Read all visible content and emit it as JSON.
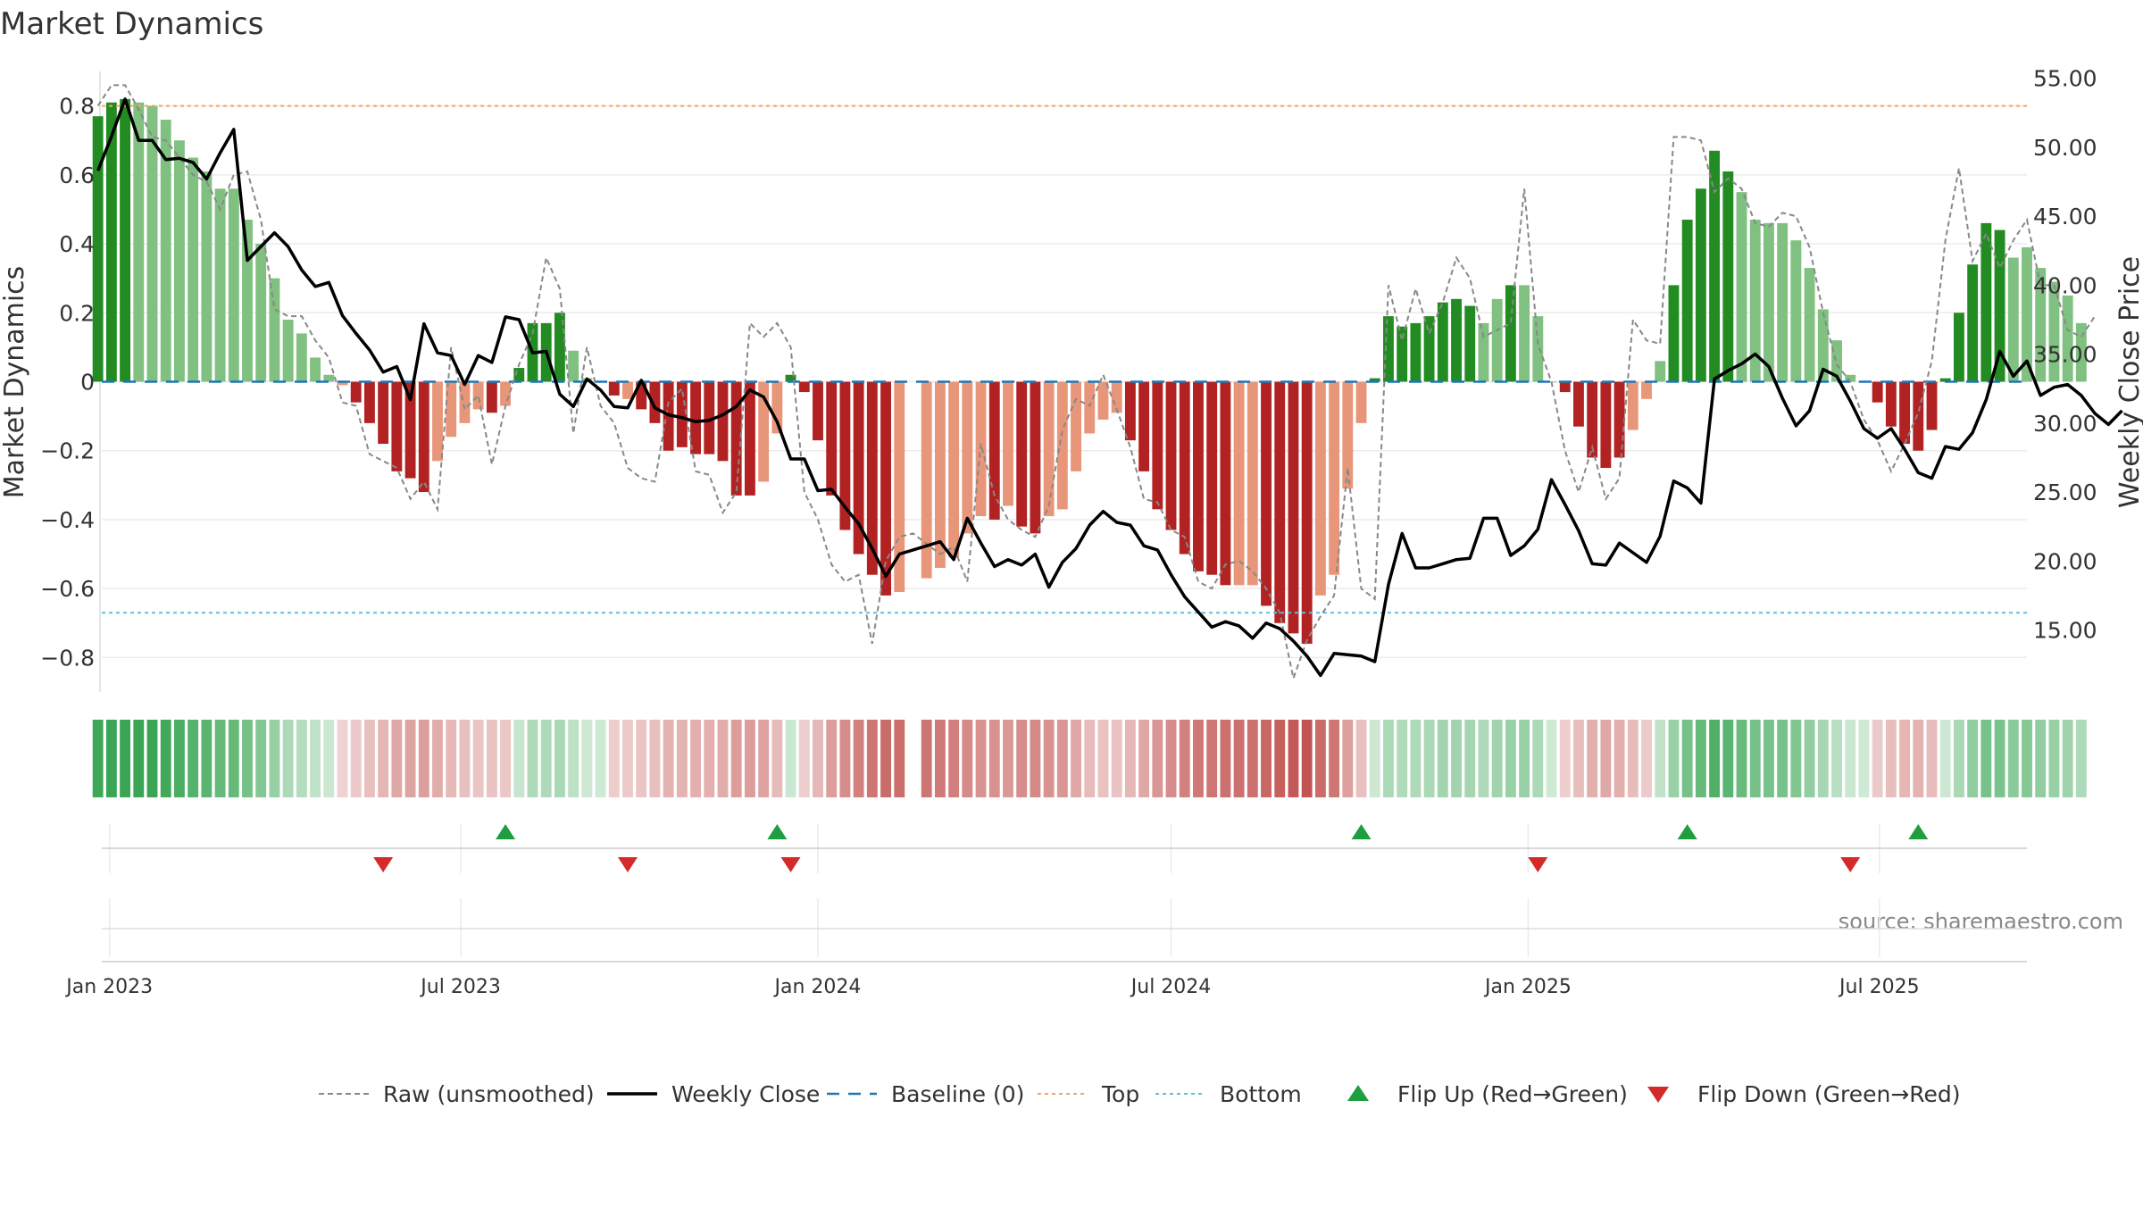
{
  "chart_data": {
    "type": "bar",
    "title": "Market Dynamics",
    "ylabel_left": "Market Dynamics",
    "ylabel_right": "Weekly Close Price",
    "source": "source: sharemaestro.com",
    "x_range": [
      "2022-12-28",
      "2025-09-15"
    ],
    "ylim_left": [
      -0.9,
      0.9
    ],
    "ylim_right": [
      10.5,
      55.5
    ],
    "left_ticks": [
      {
        "v": 0.8,
        "label": "0.8"
      },
      {
        "v": 0.6,
        "label": "0.6"
      },
      {
        "v": 0.4,
        "label": "0.4"
      },
      {
        "v": 0.2,
        "label": "0.2"
      },
      {
        "v": 0,
        "label": "0"
      },
      {
        "v": -0.2,
        "label": "−0.2"
      },
      {
        "v": -0.4,
        "label": "−0.4"
      },
      {
        "v": -0.6,
        "label": "−0.6"
      },
      {
        "v": -0.8,
        "label": "−0.8"
      }
    ],
    "right_ticks": [
      {
        "v": 55,
        "label": "55.00"
      },
      {
        "v": 50,
        "label": "50.00"
      },
      {
        "v": 45,
        "label": "45.00"
      },
      {
        "v": 40,
        "label": "40.00"
      },
      {
        "v": 35,
        "label": "35.00"
      },
      {
        "v": 30,
        "label": "30.00"
      },
      {
        "v": 25,
        "label": "25.00"
      },
      {
        "v": 20,
        "label": "20.00"
      },
      {
        "v": 15,
        "label": "15.00"
      }
    ],
    "x_ticks": [
      {
        "date": "2023-01-01",
        "label": "Jan 2023"
      },
      {
        "date": "2023-07-01",
        "label": "Jul 2023"
      },
      {
        "date": "2024-01-01",
        "label": "Jan 2024"
      },
      {
        "date": "2024-07-01",
        "label": "Jul 2024"
      },
      {
        "date": "2025-01-01",
        "label": "Jan 2025"
      },
      {
        "date": "2025-07-01",
        "label": "Jul 2025"
      }
    ],
    "start_date": "2022-12-26",
    "top_level": 0.8,
    "bottom_level": -0.67,
    "baseline": 0,
    "colors": {
      "strong_green": "#228b22",
      "light_green": "#80c080",
      "strong_red": "#b22222",
      "light_red": "#e8967a",
      "close": "#000000",
      "raw": "#888888",
      "baseline": "#1f77b4",
      "top": "#f4a460",
      "bottom": "#5bc0de",
      "flip_up": "#1e9e3e",
      "flip_down": "#d42a2a"
    },
    "momentum": [
      0.77,
      0.81,
      0.82,
      0.81,
      0.8,
      0.76,
      0.7,
      0.65,
      0.61,
      0.56,
      0.56,
      0.47,
      0.4,
      0.3,
      0.18,
      0.14,
      0.07,
      0.02,
      -0.01,
      -0.06,
      -0.12,
      -0.18,
      -0.26,
      -0.28,
      -0.32,
      -0.23,
      -0.16,
      -0.12,
      -0.08,
      -0.09,
      -0.07,
      0.04,
      0.17,
      0.17,
      0.2,
      0.09,
      0.01,
      0.0,
      -0.04,
      -0.05,
      -0.08,
      -0.12,
      -0.2,
      -0.19,
      -0.21,
      -0.21,
      -0.23,
      -0.33,
      -0.33,
      -0.29,
      -0.15,
      0.02,
      -0.03,
      -0.17,
      -0.33,
      -0.43,
      -0.5,
      -0.56,
      -0.62,
      -0.61,
      null,
      -0.57,
      -0.54,
      -0.51,
      -0.44,
      -0.39,
      -0.4,
      -0.36,
      -0.42,
      -0.44,
      -0.39,
      -0.37,
      -0.26,
      -0.15,
      -0.11,
      -0.09,
      -0.17,
      -0.26,
      -0.37,
      -0.43,
      -0.5,
      -0.55,
      -0.56,
      -0.59,
      -0.59,
      -0.59,
      -0.65,
      -0.7,
      -0.73,
      -0.76,
      -0.62,
      -0.56,
      -0.31,
      -0.12,
      0.01,
      0.19,
      0.16,
      0.17,
      0.19,
      0.23,
      0.24,
      0.22,
      0.17,
      0.24,
      0.28,
      0.28,
      0.19,
      0.0,
      -0.03,
      -0.13,
      -0.22,
      -0.25,
      -0.22,
      -0.14,
      -0.05,
      0.06,
      0.28,
      0.47,
      0.56,
      0.67,
      0.61,
      0.55,
      0.47,
      0.46,
      0.46,
      0.41,
      0.33,
      0.21,
      0.12,
      0.02,
      0.0,
      -0.06,
      -0.13,
      -0.18,
      -0.2,
      -0.14,
      0.01,
      0.2,
      0.34,
      0.46,
      0.44,
      0.36,
      0.39,
      0.33,
      0.29,
      0.25,
      0.17
    ],
    "strong": [
      1,
      1,
      1,
      0,
      0,
      0,
      0,
      0,
      0,
      0,
      0,
      0,
      0,
      0,
      0,
      0,
      0,
      0,
      0,
      1,
      1,
      1,
      1,
      1,
      1,
      0,
      0,
      0,
      0,
      1,
      0,
      1,
      1,
      1,
      1,
      0,
      0,
      0,
      1,
      0,
      1,
      1,
      1,
      1,
      1,
      1,
      1,
      1,
      1,
      0,
      0,
      1,
      1,
      1,
      1,
      1,
      1,
      1,
      1,
      0,
      0,
      0,
      0,
      0,
      0,
      0,
      1,
      0,
      1,
      1,
      0,
      0,
      0,
      0,
      0,
      0,
      1,
      1,
      1,
      1,
      1,
      1,
      1,
      1,
      0,
      0,
      1,
      1,
      1,
      1,
      0,
      0,
      0,
      0,
      1,
      1,
      1,
      1,
      1,
      1,
      1,
      1,
      0,
      0,
      1,
      0,
      0,
      0,
      1,
      1,
      1,
      1,
      1,
      0,
      0,
      0,
      1,
      1,
      1,
      1,
      1,
      0,
      0,
      0,
      0,
      0,
      0,
      0,
      0,
      0,
      1,
      1,
      1,
      1,
      1,
      1,
      1,
      1,
      1,
      1,
      1,
      0,
      0,
      0,
      0,
      0
    ],
    "close": [
      48.3,
      50.8,
      53.5,
      50.5,
      50.5,
      49.1,
      49.2,
      48.9,
      47.7,
      49.6,
      51.3,
      41.8,
      42.8,
      43.8,
      42.8,
      41.1,
      39.9,
      40.2,
      37.8,
      36.5,
      35.3,
      33.7,
      34.1,
      31.7,
      37.2,
      35.1,
      34.9,
      32.8,
      34.9,
      34.4,
      37.7,
      37.5,
      35.1,
      35.2,
      32.1,
      31.2,
      33.2,
      32.4,
      31.2,
      31.1,
      33.1,
      31.1,
      30.6,
      30.4,
      30.1,
      30.2,
      30.6,
      31.2,
      32.4,
      31.9,
      30.1,
      27.4,
      27.4,
      25.1,
      25.2,
      23.9,
      22.7,
      20.9,
      18.9,
      20.5,
      20.8,
      21.1,
      21.4,
      20.1,
      23.1,
      21.3,
      19.6,
      20.1,
      19.7,
      20.5,
      18.1,
      19.9,
      20.9,
      22.6,
      23.6,
      22.8,
      22.6,
      21.1,
      20.8,
      19.0,
      17.4,
      16.3,
      15.2,
      15.6,
      15.3,
      14.4,
      15.5,
      15.1,
      14.2,
      13.1,
      11.7,
      13.3,
      13.2,
      13.1,
      12.7,
      18.3,
      22.0,
      19.5,
      19.5,
      19.8,
      20.1,
      20.2,
      23.1,
      23.1,
      20.4,
      21.1,
      22.3,
      25.9,
      24.1,
      22.2,
      19.8,
      19.7,
      21.3,
      20.6,
      19.9,
      21.8,
      25.8,
      25.3,
      24.2,
      33.2,
      33.8,
      34.3,
      35.0,
      34.1,
      31.8,
      29.8,
      30.9,
      33.9,
      33.4,
      31.6,
      29.6,
      28.9,
      29.6,
      28.1,
      26.4,
      26.0,
      28.3,
      28.1,
      29.3,
      31.7,
      35.2,
      33.4,
      34.5,
      32.0,
      32.6,
      32.8,
      32.0,
      30.7,
      29.9,
      30.9
    ],
    "raw": [
      0.8,
      0.86,
      0.86,
      0.79,
      0.71,
      0.7,
      0.65,
      0.6,
      0.58,
      0.5,
      0.6,
      0.61,
      0.47,
      0.21,
      0.19,
      0.19,
      0.12,
      0.07,
      -0.06,
      -0.07,
      -0.21,
      -0.23,
      -0.25,
      -0.34,
      -0.29,
      -0.37,
      0.1,
      -0.08,
      -0.04,
      -0.24,
      -0.07,
      0.05,
      0.14,
      0.36,
      0.27,
      -0.15,
      0.1,
      -0.07,
      -0.12,
      -0.25,
      -0.28,
      -0.29,
      -0.06,
      -0.02,
      -0.26,
      -0.27,
      -0.38,
      -0.32,
      0.17,
      0.13,
      0.17,
      0.1,
      -0.32,
      -0.4,
      -0.53,
      -0.58,
      -0.56,
      -0.76,
      -0.52,
      -0.45,
      -0.44,
      -0.47,
      -0.5,
      -0.48,
      -0.58,
      -0.18,
      -0.33,
      -0.4,
      -0.43,
      -0.45,
      -0.36,
      -0.14,
      -0.05,
      -0.07,
      0.02,
      -0.08,
      -0.19,
      -0.34,
      -0.35,
      -0.43,
      -0.45,
      -0.58,
      -0.6,
      -0.53,
      -0.52,
      -0.55,
      -0.6,
      -0.67,
      -0.86,
      -0.75,
      -0.68,
      -0.62,
      -0.25,
      -0.6,
      -0.63,
      0.28,
      0.12,
      0.27,
      0.14,
      0.23,
      0.36,
      0.3,
      0.13,
      0.15,
      0.17,
      0.56,
      0.11,
      0.0,
      -0.2,
      -0.32,
      -0.19,
      -0.34,
      -0.28,
      0.18,
      0.12,
      0.11,
      0.71,
      0.71,
      0.7,
      0.55,
      0.59,
      0.56,
      0.46,
      0.45,
      0.49,
      0.48,
      0.39,
      0.2,
      0.05,
      0.0,
      -0.11,
      -0.17,
      -0.26,
      -0.18,
      -0.09,
      0.06,
      0.41,
      0.62,
      0.35,
      0.43,
      0.33,
      0.41,
      0.47,
      0.28,
      0.28,
      0.15,
      0.13,
      0.19
    ],
    "flip_up": [
      "2023-07-24",
      "2023-12-11",
      "2024-10-07",
      "2025-03-24",
      "2025-07-21"
    ],
    "flip_down": [
      "2023-05-22",
      "2023-09-25",
      "2023-12-18",
      "2025-01-06",
      "2025-06-16"
    ],
    "legend": [
      {
        "key": "raw",
        "label": "Raw (unsmoothed)"
      },
      {
        "key": "close",
        "label": "Weekly Close"
      },
      {
        "key": "baseline",
        "label": "Baseline (0)"
      },
      {
        "key": "top",
        "label": "Top"
      },
      {
        "key": "bottom",
        "label": "Bottom"
      },
      {
        "key": "flip_up",
        "label": "Flip Up (Red→Green)"
      },
      {
        "key": "flip_down",
        "label": "Flip Down (Green→Red)"
      }
    ]
  }
}
